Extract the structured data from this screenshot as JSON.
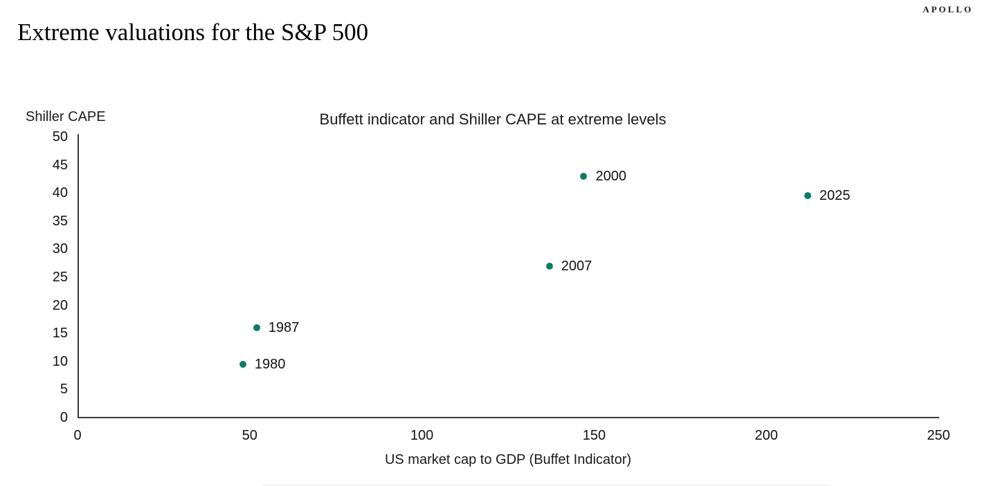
{
  "brand": {
    "logo": "APOLLO"
  },
  "page_title": "Extreme valuations for the S&P 500",
  "chart_data": {
    "type": "scatter",
    "title": "Buffett indicator and Shiller CAPE at extreme levels",
    "xlabel": "US market cap to GDP (Buffet Indicator)",
    "ylabel": "Shiller CAPE",
    "xlim": [
      0,
      250
    ],
    "ylim": [
      0,
      50
    ],
    "x_ticks": [
      0,
      50,
      100,
      150,
      200,
      250
    ],
    "y_ticks": [
      0,
      5,
      10,
      15,
      20,
      25,
      30,
      35,
      40,
      45,
      50
    ],
    "grid": false,
    "legend": "none",
    "point_color": "#0E7C64",
    "points": [
      {
        "label": "1980",
        "x": 48,
        "y": 9.5
      },
      {
        "label": "1987",
        "x": 52,
        "y": 16
      },
      {
        "label": "2007",
        "x": 137,
        "y": 27
      },
      {
        "label": "2000",
        "x": 147,
        "y": 43
      },
      {
        "label": "2025",
        "x": 212,
        "y": 39.5
      }
    ]
  }
}
